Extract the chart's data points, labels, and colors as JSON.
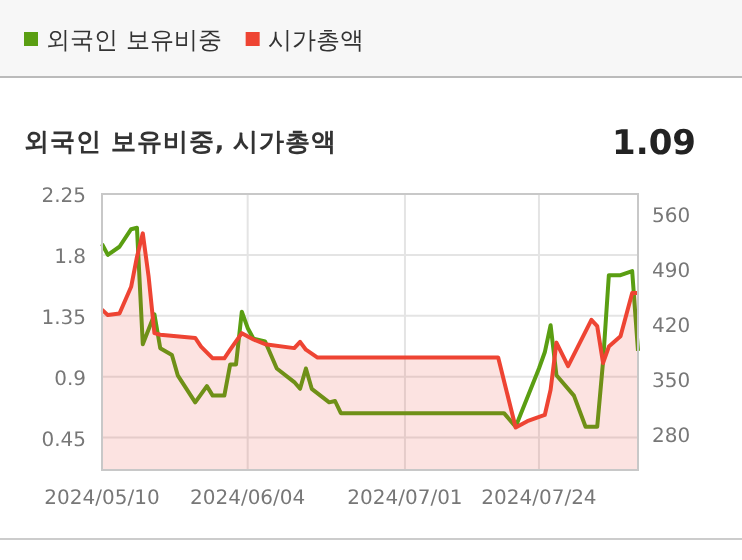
{
  "chart_data": {
    "type": "line",
    "title": "외국인 보유비중, 시가총액",
    "annotations": [
      "1.09"
    ],
    "xlim": [
      "2024-05-10",
      "2024-08-10"
    ],
    "xticks": [
      {
        "value": "2024-05-10",
        "label": "2024/05/10"
      },
      {
        "value": "2024-06-04",
        "label": "2024/06/04"
      },
      {
        "value": "2024-07-01",
        "label": "2024/07/01"
      },
      {
        "value": "2024-07-24",
        "label": "2024/07/24"
      }
    ],
    "ylim": [
      0.21,
      2.25
    ],
    "yticks": [
      0.45,
      0.9,
      1.35,
      1.8,
      2.25
    ],
    "y2lim": [
      234,
      585
    ],
    "y2ticks": [
      280,
      350,
      420,
      490,
      560
    ],
    "grid": true,
    "legend": "top left",
    "series": [
      {
        "name": "외국인 보유비중",
        "color": "#5a9e12",
        "type": "line",
        "x": [
          "2024-05-10",
          "2024-05-11",
          "2024-05-13",
          "2024-05-15",
          "2024-05-16",
          "2024-05-17",
          "2024-05-19",
          "2024-05-20",
          "2024-05-22",
          "2024-05-23",
          "2024-05-26",
          "2024-05-28",
          "2024-05-29",
          "2024-05-31",
          "2024-06-01",
          "2024-06-02",
          "2024-06-03",
          "2024-06-04",
          "2024-06-05",
          "2024-06-07",
          "2024-06-09",
          "2024-06-12",
          "2024-06-13",
          "2024-06-14",
          "2024-06-15",
          "2024-06-18",
          "2024-06-19",
          "2024-06-20",
          "2024-07-18",
          "2024-07-20",
          "2024-07-24",
          "2024-07-25",
          "2024-07-26",
          "2024-07-27",
          "2024-07-30",
          "2024-08-01",
          "2024-08-03",
          "2024-08-04",
          "2024-08-05",
          "2024-08-07",
          "2024-08-09",
          "2024-08-10"
        ],
        "values": [
          1.88,
          1.8,
          1.86,
          1.99,
          2.0,
          1.14,
          1.36,
          1.11,
          1.06,
          0.91,
          0.71,
          0.83,
          0.76,
          0.76,
          0.99,
          0.99,
          1.38,
          1.26,
          1.18,
          1.16,
          0.96,
          0.86,
          0.81,
          0.96,
          0.81,
          0.71,
          0.72,
          0.63,
          0.63,
          0.53,
          0.96,
          1.08,
          1.28,
          0.91,
          0.76,
          0.53,
          0.53,
          1.01,
          1.65,
          1.65,
          1.68,
          1.09
        ]
      },
      {
        "name": "시가총액",
        "color": "#ee4433",
        "type": "area",
        "axis": "y2",
        "x": [
          "2024-05-10",
          "2024-05-11",
          "2024-05-13",
          "2024-05-15",
          "2024-05-16",
          "2024-05-17",
          "2024-05-18",
          "2024-05-19",
          "2024-05-20",
          "2024-05-26",
          "2024-05-27",
          "2024-05-29",
          "2024-05-31",
          "2024-06-01",
          "2024-06-03",
          "2024-06-05",
          "2024-06-07",
          "2024-06-12",
          "2024-06-13",
          "2024-06-14",
          "2024-06-16",
          "2024-07-17",
          "2024-07-20",
          "2024-07-22",
          "2024-07-25",
          "2024-07-26",
          "2024-07-27",
          "2024-07-29",
          "2024-08-02",
          "2024-08-03",
          "2024-08-04",
          "2024-08-05",
          "2024-08-07",
          "2024-08-09",
          "2024-08-10"
        ],
        "values": [
          438,
          431,
          433,
          467,
          505,
          535,
          480,
          408,
          406,
          402,
          391,
          376,
          376,
          387,
          408,
          400,
          394,
          389,
          397,
          387,
          377,
          377,
          288,
          296,
          304,
          336,
          396,
          366,
          425,
          417,
          370,
          391,
          404,
          459,
          459
        ]
      }
    ]
  }
}
